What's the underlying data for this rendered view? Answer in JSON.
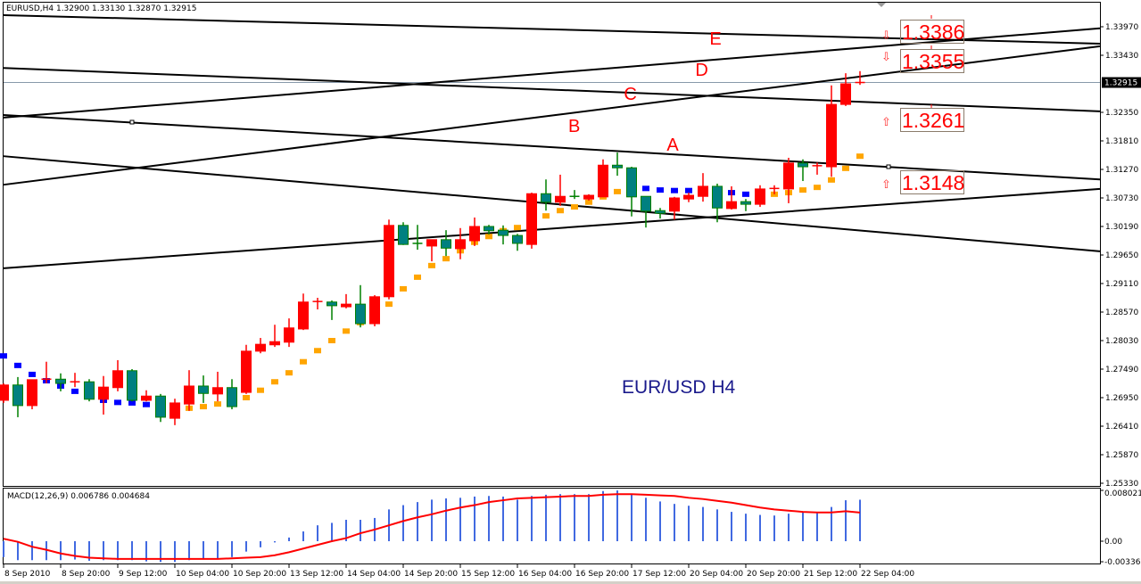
{
  "header": {
    "symbol_info": "EURUSD,H4  1.32900 1.33130 1.32870 1.32915"
  },
  "colors": {
    "bull": "#ff0000",
    "bear": "#008080",
    "bear_outline": "#008000",
    "dot_above": "#0000ff",
    "dot_below": "#ffa500",
    "macd_hist": "#4169e1",
    "macd_signal": "#ff0000",
    "wave_label": "#ff0000",
    "annotation": "#1a1a8c"
  },
  "chart_data": {
    "type": "candlestick",
    "annotation_title": "EUR/USD  H4",
    "y_ticks": [
      "1.33970",
      "1.33430",
      "1.32350",
      "1.31810",
      "1.31270",
      "1.30730",
      "1.30190",
      "1.29650",
      "1.29110",
      "1.28570",
      "1.28030",
      "1.27490",
      "1.26950",
      "1.26410",
      "1.25870",
      "1.25330"
    ],
    "current_price": "1.32915",
    "x_ticks": [
      "8 Sep 2010",
      "8 Sep 20:00",
      "9 Sep 12:00",
      "10 Sep 04:00",
      "10 Sep 20:00",
      "13 Sep 12:00",
      "14 Sep 04:00",
      "14 Sep 20:00",
      "15 Sep 12:00",
      "16 Sep 04:00",
      "16 Sep 20:00",
      "17 Sep 12:00",
      "20 Sep 04:00",
      "20 Sep 20:00",
      "21 Sep 12:00",
      "22 Sep 04:00"
    ],
    "x_tick_every_bars": 4,
    "ohlc_fields": [
      "open",
      "high",
      "low",
      "close"
    ],
    "candles": [
      [
        1.269,
        1.2722,
        1.2685,
        1.2719
      ],
      [
        1.2719,
        1.2734,
        1.2658,
        1.268
      ],
      [
        1.268,
        1.2729,
        1.2673,
        1.2729
      ],
      [
        1.2727,
        1.2763,
        1.2722,
        1.273
      ],
      [
        1.273,
        1.2741,
        1.2707,
        1.2722
      ],
      [
        1.2722,
        1.2742,
        1.2715,
        1.2725
      ],
      [
        1.2725,
        1.273,
        1.2688,
        1.2692
      ],
      [
        1.2692,
        1.2736,
        1.2663,
        1.2715
      ],
      [
        1.2714,
        1.2766,
        1.2707,
        1.2746
      ],
      [
        1.2746,
        1.2749,
        1.2688,
        1.269
      ],
      [
        1.269,
        1.2709,
        1.2688,
        1.2698
      ],
      [
        1.2698,
        1.2702,
        1.2649,
        1.2658
      ],
      [
        1.2656,
        1.2693,
        1.2643,
        1.2685
      ],
      [
        1.2683,
        1.2747,
        1.267,
        1.2717
      ],
      [
        1.2717,
        1.2737,
        1.2685,
        1.2703
      ],
      [
        1.2702,
        1.2744,
        1.2688,
        1.2714
      ],
      [
        1.2714,
        1.273,
        1.2673,
        1.2678
      ],
      [
        1.2705,
        1.2795,
        1.2702,
        1.2783
      ],
      [
        1.2783,
        1.2808,
        1.2779,
        1.2796
      ],
      [
        1.2795,
        1.2833,
        1.2791,
        1.2801
      ],
      [
        1.28,
        1.2845,
        1.2791,
        1.2827
      ],
      [
        1.2825,
        1.2892,
        1.2823,
        1.2876
      ],
      [
        1.2874,
        1.2884,
        1.2862,
        1.2877
      ],
      [
        1.2876,
        1.2879,
        1.2842,
        1.2869
      ],
      [
        1.2867,
        1.2891,
        1.2864,
        1.2872
      ],
      [
        1.2872,
        1.2908,
        1.2828,
        1.2835
      ],
      [
        1.2835,
        1.2889,
        1.283,
        1.2886
      ],
      [
        1.2886,
        1.3032,
        1.2881,
        1.3021
      ],
      [
        1.3021,
        1.3027,
        1.2984,
        1.2985
      ],
      [
        1.2987,
        1.3022,
        1.2975,
        1.2985
      ],
      [
        1.2982,
        1.2994,
        1.2953,
        1.2994
      ],
      [
        1.2994,
        1.3012,
        1.2963,
        1.2978
      ],
      [
        1.2977,
        1.3016,
        1.2957,
        1.2994
      ],
      [
        1.2992,
        1.3036,
        1.2982,
        1.3019
      ],
      [
        1.3019,
        1.3022,
        1.3004,
        1.3011
      ],
      [
        1.3012,
        1.3021,
        1.2985,
        1.3002
      ],
      [
        1.3002,
        1.3005,
        1.2973,
        1.2987
      ],
      [
        1.2985,
        1.3083,
        1.2977,
        1.3081
      ],
      [
        1.3081,
        1.3108,
        1.3049,
        1.3065
      ],
      [
        1.3065,
        1.3117,
        1.3058,
        1.3076
      ],
      [
        1.3076,
        1.3088,
        1.3071,
        1.3073
      ],
      [
        1.3071,
        1.308,
        1.3068,
        1.3078
      ],
      [
        1.3075,
        1.3146,
        1.3075,
        1.3135
      ],
      [
        1.3135,
        1.3159,
        1.3115,
        1.313
      ],
      [
        1.313,
        1.3132,
        1.3038,
        1.3075
      ],
      [
        1.3076,
        1.3076,
        1.3017,
        1.3048
      ],
      [
        1.3049,
        1.3054,
        1.3034,
        1.3044
      ],
      [
        1.3048,
        1.3075,
        1.3032,
        1.3073
      ],
      [
        1.3071,
        1.3083,
        1.3065,
        1.3078
      ],
      [
        1.3076,
        1.312,
        1.3066,
        1.3095
      ],
      [
        1.3095,
        1.31,
        1.3027,
        1.3054
      ],
      [
        1.3053,
        1.3095,
        1.3051,
        1.3066
      ],
      [
        1.3066,
        1.3071,
        1.3048,
        1.3061
      ],
      [
        1.3061,
        1.3097,
        1.3056,
        1.309
      ],
      [
        1.309,
        1.3097,
        1.308,
        1.3091
      ],
      [
        1.309,
        1.3149,
        1.3063,
        1.3139
      ],
      [
        1.3139,
        1.3146,
        1.3105,
        1.3132
      ],
      [
        1.3132,
        1.314,
        1.3117,
        1.3134
      ],
      [
        1.3132,
        1.3286,
        1.3113,
        1.325
      ],
      [
        1.325,
        1.3309,
        1.3247,
        1.3289
      ],
      [
        1.329,
        1.3313,
        1.3287,
        1.32915
      ]
    ],
    "indicator_dots": {
      "values": [
        1.2774,
        1.2756,
        1.2739,
        1.2727,
        1.2717,
        1.2707,
        1.2697,
        1.269,
        1.2686,
        1.2685,
        1.2682,
        1.2678,
        1.2675,
        1.2675,
        1.2678,
        1.2683,
        1.2686,
        1.2695,
        1.2709,
        1.2725,
        1.2742,
        1.2763,
        1.2784,
        1.2803,
        1.2821,
        1.2837,
        1.2852,
        1.2872,
        1.2901,
        1.2923,
        1.2945,
        1.2958,
        1.2973,
        1.2989,
        1.3,
        1.3011,
        1.3017,
        1.3027,
        1.3039,
        1.3049,
        1.3056,
        1.3065,
        1.3075,
        1.3085,
        1.309,
        1.3091,
        1.3088,
        1.3087,
        1.3087,
        1.3087,
        1.3085,
        1.3083,
        1.308,
        1.308,
        1.308,
        1.3083,
        1.3088,
        1.3093,
        1.3107,
        1.3129,
        1.3152
      ],
      "colors": [
        "blue",
        "blue",
        "blue",
        "blue",
        "blue",
        "blue",
        "blue",
        "blue",
        "blue",
        "blue",
        "blue",
        "blue",
        "blue",
        "orange",
        "orange",
        "orange",
        "orange",
        "orange",
        "orange",
        "orange",
        "orange",
        "orange",
        "orange",
        "orange",
        "orange",
        "orange",
        "orange",
        "orange",
        "orange",
        "orange",
        "orange",
        "orange",
        "orange",
        "orange",
        "orange",
        "orange",
        "orange",
        "orange",
        "orange",
        "orange",
        "orange",
        "orange",
        "orange",
        "orange",
        "orange",
        "blue",
        "blue",
        "blue",
        "blue",
        "orange",
        "blue",
        "blue",
        "blue",
        "orange",
        "orange",
        "orange",
        "orange",
        "orange",
        "orange",
        "orange",
        "orange"
      ]
    },
    "trendlines": [
      {
        "price_left": 1.3419,
        "price_right": 1.3365
      },
      {
        "price_left": 1.3319,
        "price_right": 1.3237
      },
      {
        "price_left": 1.323,
        "price_right": 1.3108
      },
      {
        "price_left": 1.3152,
        "price_right": 1.2972
      },
      {
        "price_left": 1.3225,
        "price_right": 1.3394
      },
      {
        "price_left": 1.3098,
        "price_right": 1.336
      },
      {
        "price_left": 1.294,
        "price_right": 1.309
      }
    ],
    "horizontal_line": 1.32915,
    "wave_labels": [
      {
        "label": "E",
        "bar": 49.9,
        "price": 1.3377
      },
      {
        "label": "D",
        "bar": 48.9,
        "price": 1.3318
      },
      {
        "label": "C",
        "bar": 43.9,
        "price": 1.3272
      },
      {
        "label": "B",
        "bar": 40.0,
        "price": 1.3211
      },
      {
        "label": "A",
        "bar": 46.9,
        "price": 1.3176
      }
    ],
    "levels": [
      {
        "label": "1.3386",
        "direction": "down"
      },
      {
        "label": "1.3355",
        "direction": "down"
      },
      {
        "label": "1.3261",
        "direction": "up"
      },
      {
        "label": "1.3148",
        "direction": "up"
      }
    ],
    "macd": {
      "label": "MACD(12,26,9) 0.006786 0.004684",
      "y_ticks": [
        "0.008021",
        "0.00",
        "-0.00336"
      ],
      "histogram": [
        -0.0026,
        -0.0031,
        -0.0031,
        -0.0031,
        -0.0031,
        -0.003,
        -0.0032,
        -0.0031,
        -0.0031,
        -0.0031,
        -0.0033,
        -0.0034,
        -0.0034,
        -0.0031,
        -0.003,
        -0.0028,
        -0.0026,
        -0.0017,
        -0.001,
        -0.0002,
        0.0006,
        0.0016,
        0.0026,
        0.003,
        0.0035,
        0.0035,
        0.0038,
        0.0052,
        0.0059,
        0.0064,
        0.0068,
        0.007,
        0.0071,
        0.0073,
        0.0074,
        0.0073,
        0.0068,
        0.0074,
        0.0076,
        0.0077,
        0.0077,
        0.0077,
        0.0082,
        0.0083,
        0.0077,
        0.0071,
        0.0065,
        0.0061,
        0.0058,
        0.0056,
        0.0052,
        0.0048,
        0.0045,
        0.0043,
        0.0042,
        0.0045,
        0.0048,
        0.0048,
        0.0056,
        0.0067,
        0.006786
      ],
      "signal": [
        0.0004,
        -0.0001,
        -0.0009,
        -0.0014,
        -0.002,
        -0.0024,
        -0.0027,
        -0.0028,
        -0.0029,
        -0.0029,
        -0.0029,
        -0.0029,
        -0.0029,
        -0.0029,
        -0.0029,
        -0.0029,
        -0.0028,
        -0.0027,
        -0.0026,
        -0.0023,
        -0.0018,
        -0.0012,
        -0.0006,
        0.0,
        0.0005,
        0.0013,
        0.0019,
        0.0026,
        0.0033,
        0.0039,
        0.0044,
        0.005,
        0.0055,
        0.0059,
        0.0064,
        0.0067,
        0.007,
        0.0071,
        0.0072,
        0.0073,
        0.0074,
        0.0074,
        0.0076,
        0.0077,
        0.0077,
        0.0076,
        0.0075,
        0.0074,
        0.0071,
        0.0069,
        0.0066,
        0.0063,
        0.0059,
        0.0055,
        0.0052,
        0.005,
        0.0048,
        0.0047,
        0.0047,
        0.0049,
        0.004684
      ]
    }
  }
}
